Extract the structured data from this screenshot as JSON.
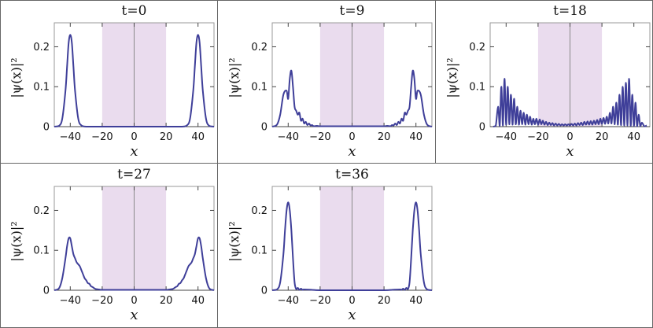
{
  "chart_data": [
    {
      "type": "line",
      "title": "t=0",
      "xlabel": "x",
      "ylabel": "|ψ(x)|²",
      "xlim": [
        -50,
        50
      ],
      "ylim": [
        0,
        0.26
      ],
      "x_ticks": [
        -40,
        -20,
        0,
        20,
        40
      ],
      "y_ticks": [
        0,
        0.1,
        0.2
      ],
      "y_tick_labels": [
        "0",
        "0.1",
        "0.2"
      ],
      "shaded_region": [
        -20,
        20
      ],
      "series": [
        {
          "x": [
            -50,
            -47,
            -45,
            -43,
            -42,
            -41,
            -40,
            -39,
            -38,
            -37,
            -35,
            -33,
            -30,
            -25,
            -20,
            -10,
            0,
            10,
            20,
            25,
            30,
            33,
            35,
            37,
            38,
            39,
            40,
            41,
            42,
            43,
            45,
            47,
            50
          ],
          "y": [
            0,
            0.002,
            0.02,
            0.09,
            0.15,
            0.21,
            0.23,
            0.21,
            0.15,
            0.09,
            0.02,
            0.003,
            0,
            0,
            0,
            0,
            0,
            0,
            0,
            0,
            0,
            0.003,
            0.02,
            0.09,
            0.15,
            0.21,
            0.23,
            0.21,
            0.15,
            0.09,
            0.02,
            0.002,
            0
          ]
        }
      ]
    },
    {
      "type": "line",
      "title": "t=9",
      "xlabel": "x",
      "ylabel": "|ψ(x)|²",
      "xlim": [
        -50,
        50
      ],
      "ylim": [
        0,
        0.26
      ],
      "x_ticks": [
        -40,
        -20,
        0,
        20,
        40
      ],
      "y_ticks": [
        0,
        0.1,
        0.2
      ],
      "y_tick_labels": [
        "0",
        "0.1",
        "0.2"
      ],
      "shaded_region": [
        -20,
        20
      ],
      "series": [
        {
          "x": [
            -50,
            -47,
            -45,
            -43,
            -41,
            -40,
            -39,
            -38,
            -37,
            -36,
            -35,
            -34,
            -33,
            -32,
            -31,
            -30,
            -29,
            -28,
            -27,
            -26,
            -25,
            -24,
            -22,
            -20,
            -15,
            -10,
            -5,
            0,
            5,
            10,
            15,
            20,
            22,
            24,
            25,
            26,
            27,
            28,
            29,
            30,
            31,
            32,
            33,
            34,
            35,
            36,
            37,
            38,
            39,
            40,
            41,
            43,
            45,
            47,
            50
          ],
          "y": [
            0,
            0.005,
            0.03,
            0.08,
            0.09,
            0.07,
            0.12,
            0.14,
            0.1,
            0.05,
            0.04,
            0.03,
            0.035,
            0.015,
            0.02,
            0.008,
            0.012,
            0.004,
            0.008,
            0.003,
            0.004,
            0.001,
            0.002,
            0.001,
            0.001,
            0.001,
            0.001,
            0.001,
            0.001,
            0.001,
            0.001,
            0.001,
            0.002,
            0.001,
            0.004,
            0.003,
            0.008,
            0.004,
            0.012,
            0.008,
            0.02,
            0.015,
            0.035,
            0.03,
            0.04,
            0.05,
            0.1,
            0.14,
            0.12,
            0.07,
            0.09,
            0.08,
            0.03,
            0.005,
            0
          ]
        }
      ]
    },
    {
      "type": "line",
      "title": "t=18",
      "xlabel": "x",
      "ylabel": "|ψ(x)|²",
      "xlim": [
        -50,
        50
      ],
      "ylim": [
        0,
        0.26
      ],
      "x_ticks": [
        -40,
        -20,
        0,
        20,
        40
      ],
      "y_ticks": [
        0,
        0.1,
        0.2
      ],
      "y_tick_labels": [
        "0",
        "0.1",
        "0.2"
      ],
      "shaded_region": [
        -20,
        20
      ],
      "series": [
        {
          "x": [
            -48,
            -46.5,
            -45,
            -44,
            -43,
            -42,
            -41,
            -40,
            -39,
            -38,
            -37,
            -36,
            -35,
            -34,
            -33,
            -32,
            -31,
            -30,
            -29,
            -28,
            -27,
            -26,
            -25,
            -24,
            -23,
            -22,
            -21,
            -20,
            -19,
            -18,
            -17,
            -16,
            -15,
            -14,
            -13,
            -12,
            -11,
            -10,
            -9,
            -8,
            -7,
            -6,
            -5,
            -4,
            -3,
            -2,
            -1,
            0,
            1,
            2,
            3,
            4,
            5,
            6,
            7,
            8,
            9,
            10,
            11,
            12,
            13,
            14,
            15,
            16,
            17,
            18,
            19,
            20,
            21,
            22,
            23,
            24,
            25,
            26,
            27,
            28,
            29,
            30,
            31,
            32,
            33,
            34,
            35,
            36,
            37,
            38,
            39,
            40,
            41,
            42,
            43,
            44,
            45,
            46.5,
            48
          ],
          "y": [
            0,
            0.002,
            0.05,
            0.002,
            0.1,
            0.003,
            0.12,
            0.005,
            0.1,
            0.006,
            0.08,
            0.005,
            0.07,
            0.006,
            0.05,
            0.005,
            0.04,
            0.006,
            0.035,
            0.005,
            0.03,
            0.006,
            0.025,
            0.005,
            0.02,
            0.006,
            0.02,
            0.005,
            0.018,
            0.006,
            0.015,
            0.005,
            0.012,
            0.004,
            0.01,
            0.004,
            0.009,
            0.003,
            0.008,
            0.003,
            0.007,
            0.003,
            0.006,
            0.003,
            0.006,
            0.003,
            0.006,
            0.003,
            0.007,
            0.003,
            0.008,
            0.003,
            0.009,
            0.004,
            0.01,
            0.004,
            0.012,
            0.005,
            0.013,
            0.005,
            0.014,
            0.005,
            0.015,
            0.006,
            0.017,
            0.006,
            0.02,
            0.007,
            0.022,
            0.007,
            0.025,
            0.008,
            0.035,
            0.008,
            0.05,
            0.006,
            0.06,
            0.005,
            0.08,
            0.004,
            0.1,
            0.003,
            0.11,
            0.003,
            0.12,
            0.002,
            0.08,
            0.002,
            0.06,
            0.001,
            0.03,
            0.001,
            0.01,
            0.001,
            0.003
          ]
        }
      ]
    },
    {
      "type": "line",
      "title": "t=27",
      "xlabel": "x",
      "ylabel": "|ψ(x)|²",
      "xlim": [
        -50,
        50
      ],
      "ylim": [
        0,
        0.26
      ],
      "x_ticks": [
        -40,
        -20,
        0,
        20,
        40
      ],
      "y_ticks": [
        0,
        0.1,
        0.2
      ],
      "y_tick_labels": [
        "0",
        "0.1",
        "0.2"
      ],
      "shaded_region": [
        -20,
        20
      ],
      "series": [
        {
          "x": [
            -50,
            -47,
            -45,
            -43,
            -42,
            -41,
            -40,
            -39,
            -38,
            -37,
            -36,
            -35,
            -34,
            -33,
            -32,
            -31,
            -30,
            -29,
            -28,
            -27,
            -26,
            -25,
            -24,
            -22,
            -20,
            -15,
            -10,
            0,
            10,
            15,
            20,
            22,
            24,
            25,
            26,
            27,
            28,
            29,
            30,
            31,
            32,
            33,
            34,
            35,
            36,
            37,
            38,
            39,
            40,
            41,
            42,
            43,
            45,
            47,
            50
          ],
          "y": [
            0,
            0.005,
            0.03,
            0.08,
            0.11,
            0.13,
            0.13,
            0.11,
            0.09,
            0.08,
            0.07,
            0.065,
            0.06,
            0.05,
            0.04,
            0.03,
            0.025,
            0.018,
            0.016,
            0.01,
            0.008,
            0.005,
            0.003,
            0.002,
            0.001,
            0.001,
            0.001,
            0.001,
            0.001,
            0.001,
            0.001,
            0.002,
            0.003,
            0.005,
            0.008,
            0.01,
            0.016,
            0.018,
            0.025,
            0.03,
            0.04,
            0.05,
            0.06,
            0.065,
            0.07,
            0.08,
            0.09,
            0.11,
            0.13,
            0.13,
            0.11,
            0.08,
            0.03,
            0.005,
            0
          ]
        }
      ]
    },
    {
      "type": "line",
      "title": "t=36",
      "xlabel": "x",
      "ylabel": "|ψ(x)|²",
      "xlim": [
        -50,
        50
      ],
      "ylim": [
        0,
        0.26
      ],
      "x_ticks": [
        -40,
        -20,
        0,
        20,
        40
      ],
      "y_ticks": [
        0,
        0.1,
        0.2
      ],
      "y_tick_labels": [
        "0",
        "0.1",
        "0.2"
      ],
      "shaded_region": [
        -20,
        20
      ],
      "series": [
        {
          "x": [
            -50,
            -47,
            -45,
            -43,
            -42,
            -41,
            -40,
            -39,
            -38,
            -37,
            -36,
            -35,
            -34,
            -33,
            -32,
            -31,
            -30,
            -25,
            -20,
            0,
            20,
            25,
            30,
            31,
            32,
            33,
            34,
            35,
            36,
            37,
            38,
            39,
            40,
            41,
            42,
            43,
            45,
            47,
            50
          ],
          "y": [
            0,
            0.002,
            0.02,
            0.09,
            0.15,
            0.2,
            0.22,
            0.2,
            0.15,
            0.08,
            0.02,
            0.003,
            0.006,
            0.001,
            0.004,
            0.001,
            0.002,
            0.001,
            0,
            0,
            0,
            0.001,
            0.002,
            0.001,
            0.004,
            0.001,
            0.006,
            0.003,
            0.02,
            0.08,
            0.15,
            0.2,
            0.22,
            0.2,
            0.15,
            0.09,
            0.02,
            0.002,
            0
          ]
        }
      ]
    }
  ],
  "colors": {
    "curve": "#3f3f99",
    "shaded_region": "#eadcee",
    "center_line": "#8a8a8a",
    "frame": "#9a9a9a",
    "grid": "#666666"
  }
}
